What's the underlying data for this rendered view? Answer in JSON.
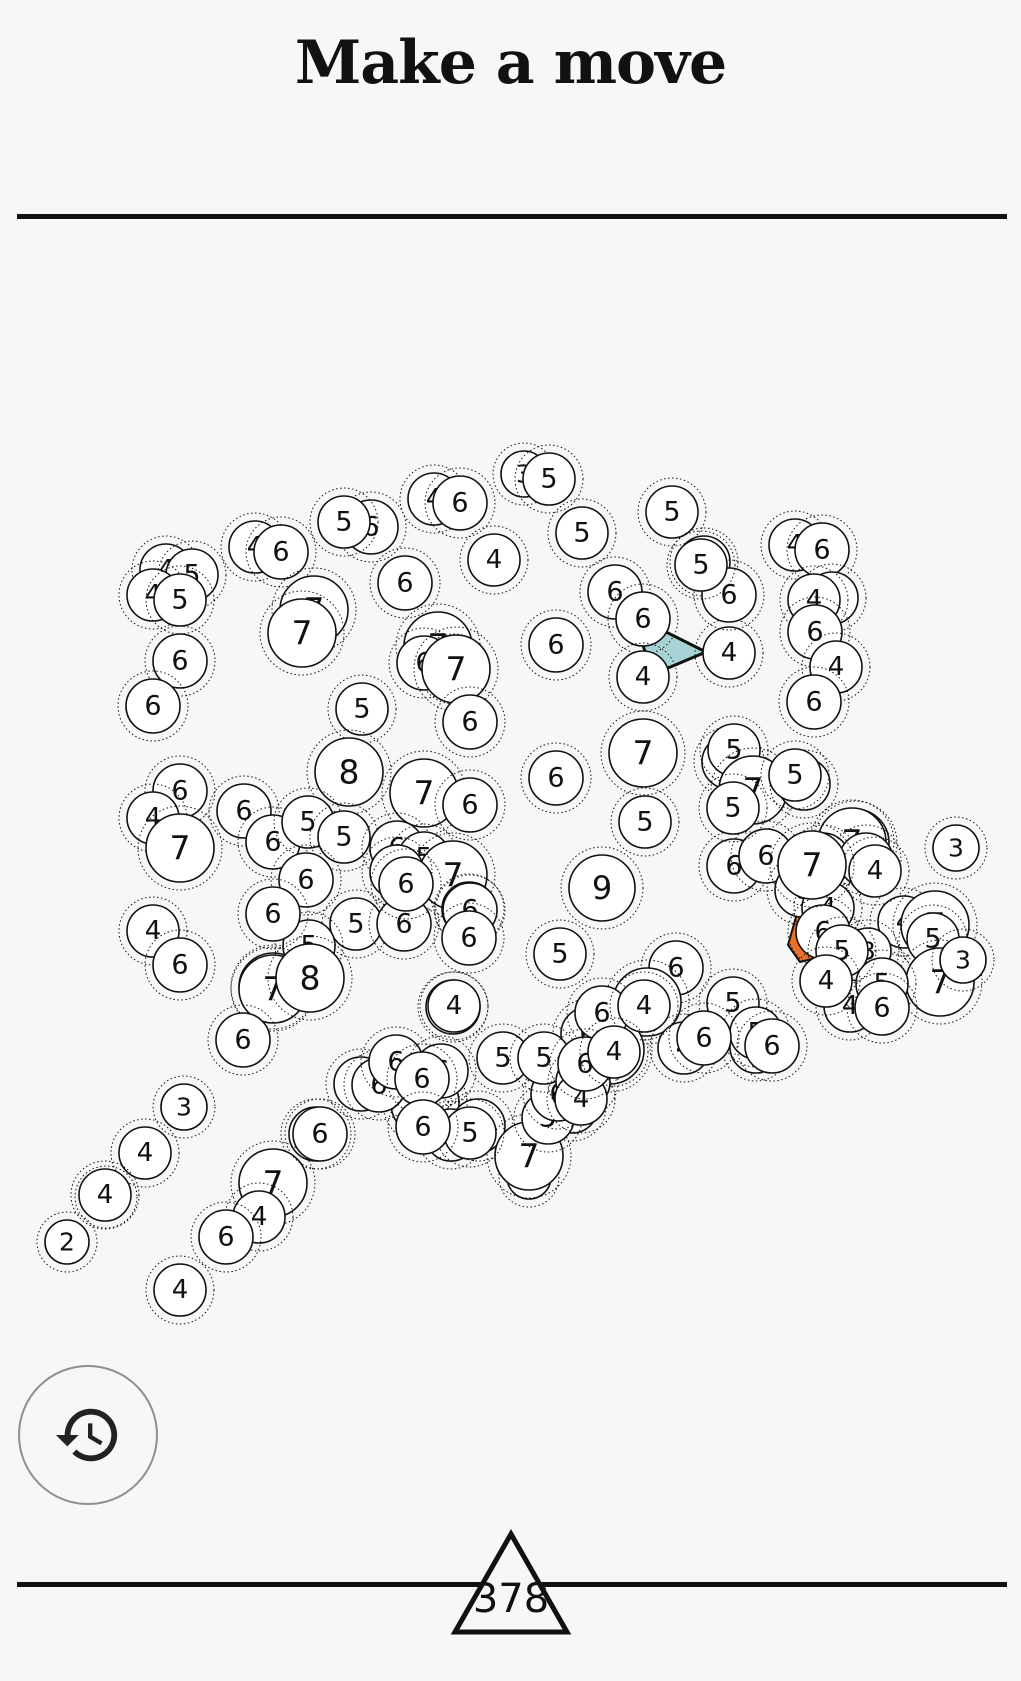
{
  "header": {
    "title": "Make a move"
  },
  "score": {
    "value": "378"
  },
  "controls": {
    "undo_icon": "history-icon"
  },
  "colors": {
    "background": "#f8f7f8",
    "ink": "#111111",
    "selected_fill": "#a7d3d6",
    "highlight_fill": "#e8702a",
    "node_fill": "#ffffff"
  },
  "nodes": [
    {
      "n": "3"
    },
    {
      "n": "5"
    },
    {
      "n": "4"
    },
    {
      "n": "6"
    },
    {
      "n": "5"
    },
    {
      "n": "5"
    },
    {
      "n": "6"
    },
    {
      "n": "5"
    },
    {
      "n": "4"
    },
    {
      "n": "6"
    },
    {
      "n": "4"
    },
    {
      "n": "5"
    },
    {
      "n": "4"
    },
    {
      "n": "5"
    },
    {
      "n": "6"
    },
    {
      "n": "4"
    },
    {
      "n": "4"
    },
    {
      "n": "6"
    },
    {
      "n": "4"
    },
    {
      "n": "4"
    },
    {
      "n": "4"
    },
    {
      "n": "5"
    },
    {
      "n": "6"
    },
    {
      "n": "6"
    },
    {
      "n": "5"
    },
    {
      "n": "6"
    },
    {
      "n": "7"
    },
    {
      "n": "7"
    },
    {
      "n": "4"
    },
    {
      "n": "6"
    },
    {
      "n": "7"
    },
    {
      "n": "6"
    },
    {
      "n": "6"
    },
    {
      "n": "7"
    },
    {
      "n": "6"
    },
    {
      "n": "5"
    },
    {
      "n": "6"
    },
    {
      "n": "4"
    },
    {
      "n": "6"
    },
    {
      "n": "6"
    },
    {
      "n": "8"
    },
    {
      "n": "7"
    },
    {
      "n": "6"
    },
    {
      "n": "6"
    },
    {
      "n": "7"
    },
    {
      "n": "6"
    },
    {
      "n": "6"
    },
    {
      "n": "5"
    },
    {
      "n": "7"
    },
    {
      "n": "5"
    },
    {
      "n": "6"
    },
    {
      "n": "4"
    },
    {
      "n": "6"
    },
    {
      "n": "7"
    },
    {
      "n": "6"
    },
    {
      "n": "5"
    },
    {
      "n": "5"
    },
    {
      "n": "6"
    },
    {
      "n": "5"
    },
    {
      "n": "6"
    },
    {
      "n": "7"
    },
    {
      "n": "6"
    },
    {
      "n": "9"
    },
    {
      "n": "6"
    },
    {
      "n": "5"
    },
    {
      "n": "6"
    },
    {
      "n": "8"
    },
    {
      "n": "5"
    },
    {
      "n": "6"
    },
    {
      "n": "5"
    },
    {
      "n": "6"
    },
    {
      "n": "7"
    },
    {
      "n": "6"
    },
    {
      "n": "6"
    },
    {
      "n": "4"
    },
    {
      "n": "6"
    },
    {
      "n": "7"
    },
    {
      "n": "5"
    },
    {
      "n": "5"
    },
    {
      "n": "6"
    },
    {
      "n": "4"
    },
    {
      "n": "3"
    },
    {
      "n": "6"
    },
    {
      "n": "4"
    },
    {
      "n": "3"
    },
    {
      "n": "4"
    },
    {
      "n": "2"
    },
    {
      "n": "6"
    },
    {
      "n": "6"
    },
    {
      "n": "6"
    },
    {
      "n": "6"
    },
    {
      "n": "4"
    },
    {
      "n": "7"
    },
    {
      "n": "3"
    },
    {
      "n": "6"
    },
    {
      "n": "3"
    },
    {
      "n": "5"
    },
    {
      "n": "6"
    },
    {
      "n": "8"
    },
    {
      "n": "6"
    },
    {
      "n": "5"
    },
    {
      "n": "7"
    },
    {
      "n": "2"
    },
    {
      "n": "6"
    },
    {
      "n": "4"
    },
    {
      "n": "7"
    },
    {
      "n": "4"
    },
    {
      "n": "6"
    },
    {
      "n": "4"
    },
    {
      "n": "4"
    },
    {
      "n": "7"
    },
    {
      "n": "6"
    },
    {
      "n": "6"
    },
    {
      "n": "4"
    },
    {
      "n": "7"
    },
    {
      "n": "6"
    },
    {
      "n": "6"
    },
    {
      "n": "7"
    },
    {
      "n": "6"
    },
    {
      "n": "5"
    },
    {
      "n": "6"
    },
    {
      "n": "5"
    },
    {
      "n": "5"
    },
    {
      "n": "6"
    },
    {
      "n": "6"
    },
    {
      "n": "5"
    },
    {
      "n": "5"
    },
    {
      "n": "6"
    },
    {
      "n": "6"
    },
    {
      "n": "5"
    },
    {
      "n": "7"
    },
    {
      "n": "4"
    },
    {
      "n": "5"
    },
    {
      "n": "7"
    },
    {
      "n": "5"
    },
    {
      "n": "6"
    },
    {
      "n": "3"
    },
    {
      "n": "7"
    },
    {
      "n": "5"
    },
    {
      "n": "4"
    },
    {
      "n": "6"
    },
    {
      "n": "5"
    },
    {
      "n": "6"
    },
    {
      "n": "4"
    },
    {
      "n": "4"
    },
    {
      "n": "6"
    },
    {
      "n": "6"
    },
    {
      "n": "4"
    },
    {
      "n": "4"
    },
    {
      "n": "6"
    }
  ]
}
